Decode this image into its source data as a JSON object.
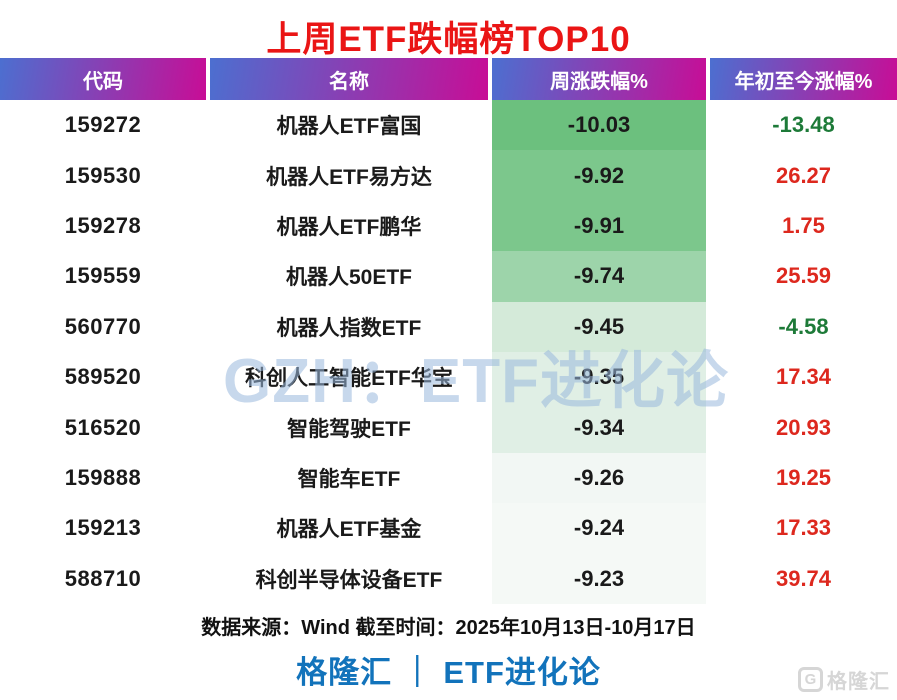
{
  "title": "上周ETF跌幅榜TOP10",
  "watermark": "GZH：ETF进化论",
  "table": {
    "headers": [
      "代码",
      "名称",
      "周涨跌幅%",
      "年初至今涨幅%"
    ],
    "rows": [
      {
        "code": "159272",
        "name": "机器人ETF富国",
        "week": "-10.03",
        "ytd": "-13.48",
        "week_bg": "#6cc07e"
      },
      {
        "code": "159530",
        "name": "机器人ETF易方达",
        "week": "-9.92",
        "ytd": "26.27",
        "week_bg": "#7cc78c"
      },
      {
        "code": "159278",
        "name": "机器人ETF鹏华",
        "week": "-9.91",
        "ytd": "1.75",
        "week_bg": "#7cc78c"
      },
      {
        "code": "159559",
        "name": "机器人50ETF",
        "week": "-9.74",
        "ytd": "25.59",
        "week_bg": "#9dd4aa"
      },
      {
        "code": "560770",
        "name": "机器人指数ETF",
        "week": "-9.45",
        "ytd": "-4.58",
        "week_bg": "#d4ead9"
      },
      {
        "code": "589520",
        "name": "科创人工智能ETF华宝",
        "week": "-9.35",
        "ytd": "17.34",
        "week_bg": "#e0efe5"
      },
      {
        "code": "516520",
        "name": "智能驾驶ETF",
        "week": "-9.34",
        "ytd": "20.93",
        "week_bg": "#e0efe5"
      },
      {
        "code": "159888",
        "name": "智能车ETF",
        "week": "-9.26",
        "ytd": "19.25",
        "week_bg": "#f2f7f4"
      },
      {
        "code": "159213",
        "name": "机器人ETF基金",
        "week": "-9.24",
        "ytd": "17.33",
        "week_bg": "#f5f9f6"
      },
      {
        "code": "588710",
        "name": "科创半导体设备ETF",
        "week": "-9.23",
        "ytd": "39.74",
        "week_bg": "#f5f9f6"
      }
    ]
  },
  "source_note": "数据来源：Wind 截至时间：2025年10月13日-10月17日",
  "brand_footer": "格隆汇 ｜ ETF进化论",
  "corner_logo": {
    "letter": "G",
    "label": "格隆汇"
  },
  "colors": {
    "title_red": "#ea1515",
    "header_gradient_start": "#4c6fd0",
    "header_gradient_end": "#c80d96",
    "ytd_up_red": "#dd281e",
    "ytd_down_green": "#1d7a38",
    "footer_blue": "#1273bb",
    "watermark_blue": "#9ab9dd",
    "logo_gray": "#d6d6d6"
  }
}
